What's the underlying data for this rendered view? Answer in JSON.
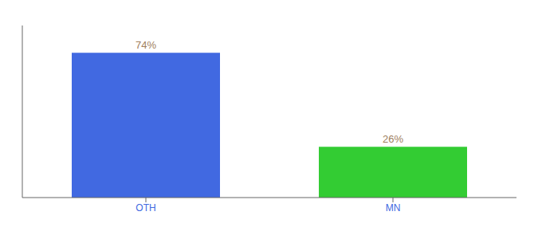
{
  "chart_data": {
    "type": "bar",
    "categories": [
      "OTH",
      "MN"
    ],
    "values": [
      74,
      26
    ],
    "value_labels": [
      "74%",
      "26%"
    ],
    "colors": [
      "#4169e1",
      "#33cc33"
    ],
    "ylim": [
      0,
      88
    ],
    "data_labels": true,
    "tick_labels": "x"
  }
}
